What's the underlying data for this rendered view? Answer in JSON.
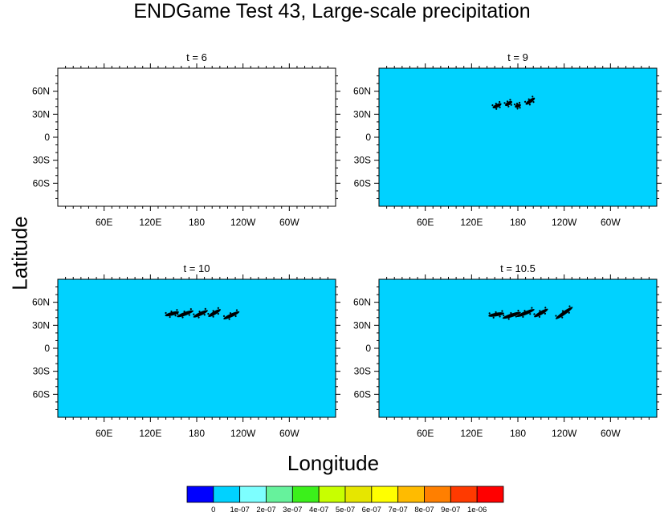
{
  "title": "ENDGame Test 43, Large-scale precipitation",
  "xlabel": "Longitude",
  "ylabel": "Latitude",
  "colors": {
    "ocean_fill": "#00d2ff",
    "empty_fill": "#ffffff",
    "contour": "#000000"
  },
  "chart_data": {
    "type": "heatmap",
    "panels": [
      {
        "label": "t = 6",
        "filled": false,
        "features": []
      },
      {
        "label": "t = 9",
        "filled": true,
        "features": [
          {
            "lon": 153,
            "lat": 41,
            "len": 12,
            "tilt": -25
          },
          {
            "lon": 168,
            "lat": 44,
            "len": 10,
            "tilt": -30
          },
          {
            "lon": 180,
            "lat": 41,
            "len": 8,
            "tilt": -20
          },
          {
            "lon": 196,
            "lat": 47,
            "len": 14,
            "tilt": -35
          }
        ]
      },
      {
        "label": "t = 10",
        "filled": true,
        "features": [
          {
            "lon": 148,
            "lat": 45,
            "len": 18,
            "tilt": -15
          },
          {
            "lon": 165,
            "lat": 45,
            "len": 22,
            "tilt": -20
          },
          {
            "lon": 185,
            "lat": 45,
            "len": 20,
            "tilt": -25
          },
          {
            "lon": 203,
            "lat": 46,
            "len": 18,
            "tilt": -30
          },
          {
            "lon": 225,
            "lat": 43,
            "len": 22,
            "tilt": -25
          }
        ]
      },
      {
        "label": "t = 10.5",
        "filled": true,
        "features": [
          {
            "lon": 152,
            "lat": 44,
            "len": 20,
            "tilt": -10
          },
          {
            "lon": 172,
            "lat": 43,
            "len": 24,
            "tilt": -18
          },
          {
            "lon": 190,
            "lat": 46,
            "len": 24,
            "tilt": -22
          },
          {
            "lon": 210,
            "lat": 46,
            "len": 20,
            "tilt": -30
          },
          {
            "lon": 240,
            "lat": 46,
            "len": 26,
            "tilt": -35
          }
        ]
      }
    ],
    "x_ticks": [
      "60E",
      "120E",
      "180",
      "120W",
      "60W"
    ],
    "x_tick_values": [
      60,
      120,
      180,
      240,
      300
    ],
    "y_ticks": [
      "60N",
      "30N",
      "0",
      "30S",
      "60S"
    ],
    "y_tick_values": [
      60,
      30,
      0,
      -30,
      -60
    ],
    "xlim": [
      0,
      360
    ],
    "ylim": [
      -90,
      90
    ],
    "colorbar": {
      "labels": [
        "0",
        "1e-07",
        "2e-07",
        "3e-07",
        "4e-07",
        "5e-07",
        "6e-07",
        "7e-07",
        "8e-07",
        "9e-07",
        "1e-06"
      ],
      "colors": [
        "#0000ff",
        "#00d2ff",
        "#7dffff",
        "#66f29c",
        "#3bf01b",
        "#c8ff00",
        "#e6e600",
        "#ffff00",
        "#ffbb00",
        "#ff7f00",
        "#ff3a00",
        "#ff0000"
      ]
    }
  }
}
